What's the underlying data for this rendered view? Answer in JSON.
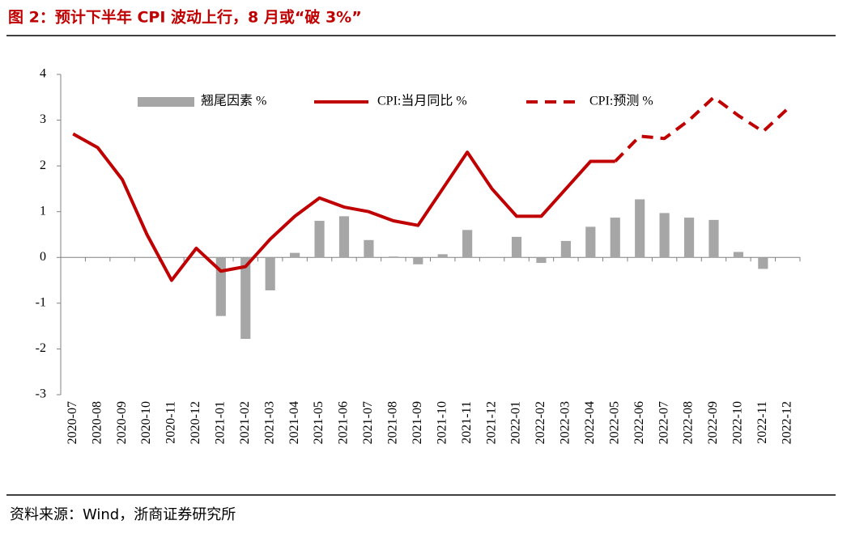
{
  "title": "图 2：预计下半年 CPI 波动上行，8 月或“破 3%”",
  "source": "资料来源：Wind，浙商证券研究所",
  "chart_data": {
    "type": "bar-line",
    "categories": [
      "2020-07",
      "2020-08",
      "2020-09",
      "2020-10",
      "2020-11",
      "2020-12",
      "2021-01",
      "2021-02",
      "2021-03",
      "2021-04",
      "2021-05",
      "2021-06",
      "2021-07",
      "2021-08",
      "2021-09",
      "2021-10",
      "2021-11",
      "2021-12",
      "2022-01",
      "2022-02",
      "2022-03",
      "2022-04",
      "2022-05",
      "2022-06",
      "2022-07",
      "2022-08",
      "2022-09",
      "2022-10",
      "2022-11",
      "2022-12"
    ],
    "series": [
      {
        "name": "翘尾因素 %",
        "kind": "bar",
        "color": "#a6a6a6",
        "values": [
          null,
          null,
          null,
          null,
          null,
          null,
          -1.28,
          -1.78,
          -0.72,
          0.1,
          0.8,
          0.9,
          0.38,
          0.02,
          -0.15,
          0.07,
          0.6,
          null,
          0.45,
          -0.12,
          0.36,
          0.67,
          0.87,
          1.27,
          0.97,
          0.87,
          0.82,
          0.12,
          -0.25,
          null
        ]
      },
      {
        "name": "CPI:当月同比 %",
        "kind": "line",
        "color": "#c00000",
        "values": [
          2.7,
          2.4,
          1.7,
          0.5,
          -0.5,
          0.2,
          -0.3,
          -0.2,
          0.4,
          0.9,
          1.3,
          1.1,
          1.0,
          0.8,
          0.7,
          1.5,
          2.3,
          1.5,
          0.9,
          0.9,
          1.5,
          2.1,
          2.1,
          null,
          null,
          null,
          null,
          null,
          null,
          null
        ]
      },
      {
        "name": "CPI:预测 %",
        "kind": "dashed",
        "color": "#c00000",
        "values": [
          null,
          null,
          null,
          null,
          null,
          null,
          null,
          null,
          null,
          null,
          null,
          null,
          null,
          null,
          null,
          null,
          null,
          null,
          null,
          null,
          null,
          null,
          2.1,
          2.65,
          2.6,
          3.0,
          3.5,
          3.1,
          2.75,
          3.25
        ]
      }
    ],
    "ylim": [
      -3,
      4
    ],
    "yticks": [
      4,
      3,
      2,
      1,
      0,
      -1,
      -2,
      -3
    ]
  }
}
